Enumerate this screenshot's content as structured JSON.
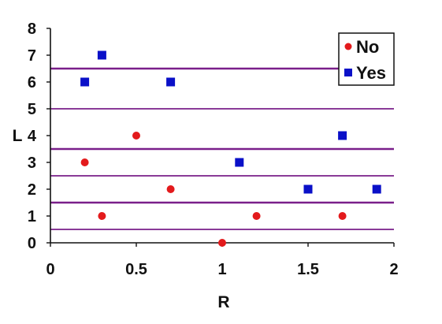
{
  "chart_data": {
    "type": "scatter",
    "title": "",
    "xlabel": "R",
    "ylabel": "L",
    "xlim": [
      0,
      2
    ],
    "ylim": [
      0,
      8
    ],
    "x_ticks": [
      "0",
      "0.5",
      "1",
      "1.5",
      "2"
    ],
    "y_ticks": [
      "0",
      "1",
      "2",
      "3",
      "4",
      "5",
      "6",
      "7",
      "8"
    ],
    "grid": false,
    "legend_position": "top-right",
    "series": [
      {
        "name": "No",
        "marker": "circle",
        "color": "#e31a1c",
        "points": [
          {
            "x": 0.2,
            "y": 3
          },
          {
            "x": 0.3,
            "y": 1
          },
          {
            "x": 0.5,
            "y": 4
          },
          {
            "x": 0.7,
            "y": 2
          },
          {
            "x": 1.0,
            "y": 0
          },
          {
            "x": 1.2,
            "y": 1
          },
          {
            "x": 1.7,
            "y": 1
          }
        ]
      },
      {
        "name": "Yes",
        "marker": "square",
        "color": "#0a10c8",
        "points": [
          {
            "x": 0.2,
            "y": 6
          },
          {
            "x": 0.3,
            "y": 7
          },
          {
            "x": 0.7,
            "y": 6
          },
          {
            "x": 1.1,
            "y": 3
          },
          {
            "x": 1.5,
            "y": 2
          },
          {
            "x": 1.7,
            "y": 4
          },
          {
            "x": 1.9,
            "y": 2
          }
        ]
      }
    ],
    "horizontal_lines": {
      "color": "#7a1f8a",
      "y_values": [
        0.5,
        1.5,
        2.5,
        3.5,
        5.0,
        6.5
      ]
    }
  }
}
